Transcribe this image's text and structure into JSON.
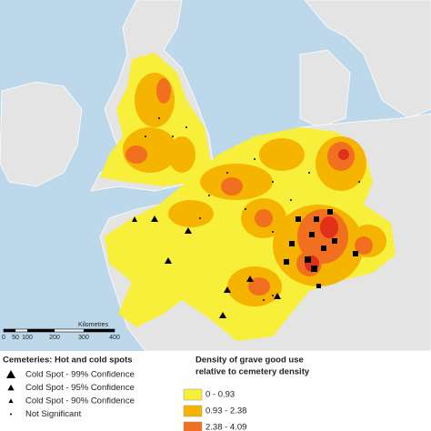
{
  "scale_bar": {
    "labels": [
      "0",
      "50",
      "100",
      "200",
      "300",
      "400"
    ],
    "unit": "Kilometres"
  },
  "legend_symbols": {
    "title": "Cemeteries: Hot and cold spots",
    "items": [
      "Cold Spot - 99% Confidence",
      "Cold Spot - 95% Confidence",
      "Cold Spot - 90% Confidence",
      "Not Significant"
    ]
  },
  "legend_density": {
    "title": [
      "Density of grave good use",
      "relative to cemetery density"
    ],
    "items": [
      "0 - 0.93",
      "0.93 - 2.38",
      "2.38 - 4.09"
    ]
  }
}
